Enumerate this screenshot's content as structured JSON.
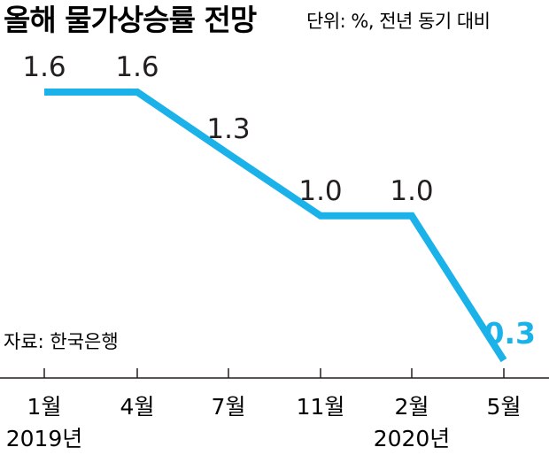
{
  "header": {
    "title": "올해 물가상승률 전망",
    "unit_note": "단위: %, 전년 동기 대비"
  },
  "source_note": "자료: 한국은행",
  "colors": {
    "line": "#1bb2ea",
    "text": "#231f20",
    "axis": "#231f20"
  },
  "chart_data": {
    "type": "line",
    "title": "올해 물가상승률 전망",
    "subtitle": "단위: %, 전년 동기 대비",
    "categories": [
      "1월",
      "4월",
      "7월",
      "11월",
      "2월",
      "5월"
    ],
    "year_labels": [
      {
        "label": "2019년",
        "category_index": 0
      },
      {
        "label": "2020년",
        "category_index": 4
      }
    ],
    "series": [
      {
        "values": [
          1.6,
          1.6,
          1.3,
          1.0,
          1.0,
          0.3
        ]
      }
    ],
    "value_labels": [
      "1.6",
      "1.6",
      "1.3",
      "1.0",
      "1.0",
      "0.3"
    ],
    "ylim": [
      0.2,
      1.8
    ],
    "grid": false,
    "legend": "none",
    "annotation": "자료: 한국은행"
  }
}
